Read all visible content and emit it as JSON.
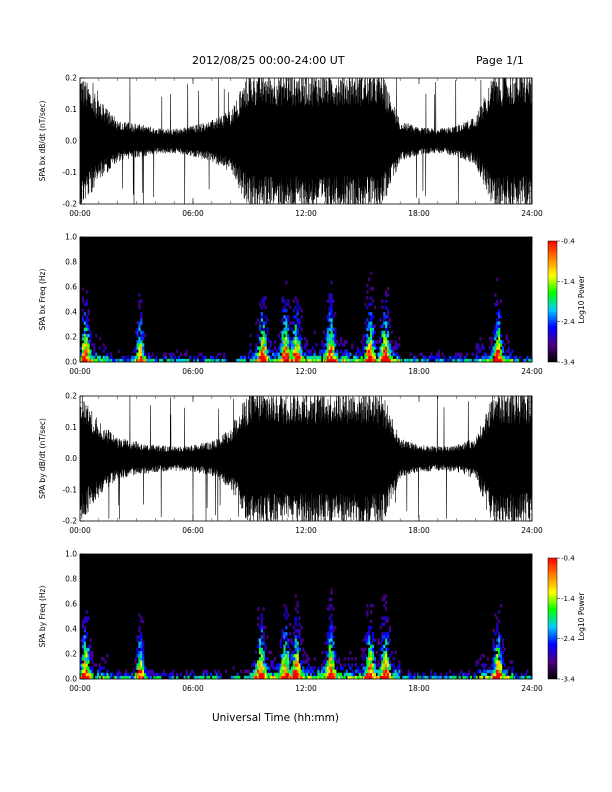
{
  "page": {
    "title": "2012/08/25  00:00-24:00 UT",
    "page_number": "Page 1/1",
    "x_axis_title": "Universal Time (hh:mm)"
  },
  "colorbar": {
    "label": "Log10 Power",
    "ticks": [
      "-0.4",
      "-1.4",
      "-2.4",
      "-3.4"
    ],
    "range": [
      -3.4,
      -0.4
    ],
    "colors": [
      "#000000",
      "#4b0082",
      "#0000ff",
      "#00c8ff",
      "#00ff00",
      "#ffff00",
      "#ff8000",
      "#ff0000"
    ]
  },
  "chart_data": [
    {
      "type": "line",
      "ylabel": "SPA bx dB/dt (nT/sec)",
      "ylim": [
        -0.2,
        0.2
      ],
      "xlim": [
        "00:00",
        "24:00"
      ],
      "x_ticks": [
        "00:00",
        "06:00",
        "12:00",
        "18:00",
        "24:00"
      ],
      "y_ticks": [
        "0.2",
        "0.1",
        "0.0",
        "-0.1",
        "-0.2"
      ],
      "series": [
        {
          "x_hours": [
            0,
            1,
            2,
            3,
            4,
            5,
            6,
            7,
            8,
            9,
            10,
            11,
            12,
            13,
            14,
            15,
            16,
            17,
            18,
            19,
            20,
            21,
            22,
            23,
            24
          ],
          "amplitude": [
            0.2,
            0.12,
            0.06,
            0.05,
            0.04,
            0.035,
            0.045,
            0.06,
            0.09,
            0.2,
            0.2,
            0.2,
            0.2,
            0.2,
            0.2,
            0.2,
            0.2,
            0.06,
            0.04,
            0.035,
            0.045,
            0.07,
            0.2,
            0.2,
            0.2
          ]
        }
      ]
    },
    {
      "type": "heatmap",
      "ylabel": "SPA bx Freq (Hz)",
      "ylim": [
        0.0,
        1.0
      ],
      "xlim": [
        "00:00",
        "24:00"
      ],
      "x_ticks": [
        "00:00",
        "06:00",
        "12:00",
        "18:00",
        "24:00"
      ],
      "y_ticks": [
        "1.0",
        "0.8",
        "0.6",
        "0.4",
        "0.2",
        "0.0"
      ],
      "bursts_hours": [
        0.3,
        3.2,
        9.7,
        10.9,
        11.5,
        13.3,
        15.4,
        16.2,
        22.2
      ]
    },
    {
      "type": "line",
      "ylabel": "SPA by dB/dt (nT/sec)",
      "ylim": [
        -0.2,
        0.2
      ],
      "xlim": [
        "00:00",
        "24:00"
      ],
      "x_ticks": [
        "00:00",
        "06:00",
        "12:00",
        "18:00",
        "24:00"
      ],
      "y_ticks": [
        "0.2",
        "0.1",
        "0.0",
        "-0.1",
        "-0.2"
      ],
      "series": [
        {
          "x_hours": [
            0,
            1,
            2,
            3,
            4,
            5,
            6,
            7,
            8,
            9,
            10,
            11,
            12,
            13,
            14,
            15,
            16,
            17,
            18,
            19,
            20,
            21,
            22,
            23,
            24
          ],
          "amplitude": [
            0.2,
            0.11,
            0.06,
            0.05,
            0.04,
            0.035,
            0.04,
            0.05,
            0.09,
            0.2,
            0.2,
            0.2,
            0.2,
            0.2,
            0.2,
            0.2,
            0.2,
            0.06,
            0.04,
            0.035,
            0.04,
            0.06,
            0.2,
            0.2,
            0.2
          ]
        }
      ]
    },
    {
      "type": "heatmap",
      "ylabel": "SPA by Freq (Hz)",
      "ylim": [
        0.0,
        1.0
      ],
      "xlim": [
        "00:00",
        "24:00"
      ],
      "x_ticks": [
        "00:00",
        "06:00",
        "12:00",
        "18:00",
        "24:00"
      ],
      "y_ticks": [
        "1.0",
        "0.8",
        "0.6",
        "0.4",
        "0.2",
        "0.0"
      ],
      "bursts_hours": [
        0.3,
        3.2,
        9.6,
        10.9,
        11.5,
        13.3,
        15.4,
        16.2,
        22.2
      ]
    }
  ]
}
